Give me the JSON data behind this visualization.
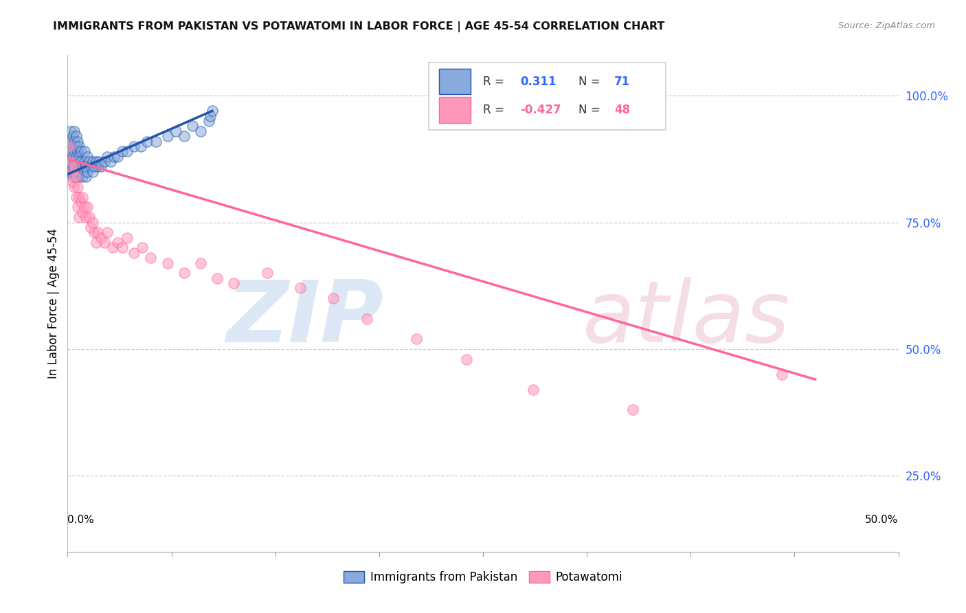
{
  "title": "IMMIGRANTS FROM PAKISTAN VS POTAWATOMI IN LABOR FORCE | AGE 45-54 CORRELATION CHART",
  "source": "Source: ZipAtlas.com",
  "ylabel": "In Labor Force | Age 45-54",
  "right_yticks": [
    "100.0%",
    "75.0%",
    "50.0%",
    "25.0%"
  ],
  "right_ytick_vals": [
    1.0,
    0.75,
    0.5,
    0.25
  ],
  "xlim": [
    0.0,
    0.5
  ],
  "ylim": [
    0.1,
    1.08
  ],
  "blue_color": "#88AADD",
  "pink_color": "#FF99BB",
  "blue_line_color": "#2255AA",
  "pink_line_color": "#FF6699",
  "pakistan_x": [
    0.001,
    0.001,
    0.001,
    0.002,
    0.002,
    0.002,
    0.002,
    0.002,
    0.003,
    0.003,
    0.003,
    0.003,
    0.003,
    0.004,
    0.004,
    0.004,
    0.004,
    0.004,
    0.005,
    0.005,
    0.005,
    0.005,
    0.005,
    0.006,
    0.006,
    0.006,
    0.006,
    0.007,
    0.007,
    0.007,
    0.007,
    0.008,
    0.008,
    0.008,
    0.009,
    0.009,
    0.01,
    0.01,
    0.01,
    0.011,
    0.011,
    0.012,
    0.012,
    0.013,
    0.014,
    0.015,
    0.015,
    0.016,
    0.017,
    0.018,
    0.019,
    0.02,
    0.022,
    0.024,
    0.026,
    0.028,
    0.03,
    0.033,
    0.036,
    0.04,
    0.044,
    0.048,
    0.053,
    0.06,
    0.065,
    0.07,
    0.075,
    0.08,
    0.085,
    0.086,
    0.087
  ],
  "pakistan_y": [
    0.86,
    0.88,
    0.9,
    0.85,
    0.87,
    0.89,
    0.91,
    0.93,
    0.84,
    0.86,
    0.88,
    0.9,
    0.92,
    0.85,
    0.87,
    0.89,
    0.91,
    0.93,
    0.84,
    0.86,
    0.88,
    0.9,
    0.92,
    0.85,
    0.87,
    0.89,
    0.91,
    0.84,
    0.86,
    0.88,
    0.9,
    0.85,
    0.87,
    0.89,
    0.84,
    0.86,
    0.85,
    0.87,
    0.89,
    0.84,
    0.86,
    0.85,
    0.88,
    0.87,
    0.86,
    0.85,
    0.87,
    0.86,
    0.87,
    0.86,
    0.87,
    0.86,
    0.87,
    0.88,
    0.87,
    0.88,
    0.88,
    0.89,
    0.89,
    0.9,
    0.9,
    0.91,
    0.91,
    0.92,
    0.93,
    0.92,
    0.94,
    0.93,
    0.95,
    0.96,
    0.97
  ],
  "potawatomi_x": [
    0.001,
    0.002,
    0.003,
    0.003,
    0.004,
    0.004,
    0.005,
    0.005,
    0.006,
    0.006,
    0.007,
    0.007,
    0.008,
    0.009,
    0.009,
    0.01,
    0.011,
    0.012,
    0.013,
    0.014,
    0.015,
    0.016,
    0.017,
    0.018,
    0.02,
    0.022,
    0.024,
    0.027,
    0.03,
    0.033,
    0.036,
    0.04,
    0.045,
    0.05,
    0.06,
    0.07,
    0.08,
    0.09,
    0.1,
    0.12,
    0.14,
    0.16,
    0.18,
    0.21,
    0.24,
    0.28,
    0.34,
    0.43
  ],
  "potawatomi_y": [
    0.9,
    0.87,
    0.85,
    0.83,
    0.86,
    0.82,
    0.84,
    0.8,
    0.82,
    0.78,
    0.8,
    0.76,
    0.79,
    0.77,
    0.8,
    0.78,
    0.76,
    0.78,
    0.76,
    0.74,
    0.75,
    0.73,
    0.71,
    0.73,
    0.72,
    0.71,
    0.73,
    0.7,
    0.71,
    0.7,
    0.72,
    0.69,
    0.7,
    0.68,
    0.67,
    0.65,
    0.67,
    0.64,
    0.63,
    0.65,
    0.62,
    0.6,
    0.56,
    0.52,
    0.48,
    0.42,
    0.38,
    0.45
  ]
}
